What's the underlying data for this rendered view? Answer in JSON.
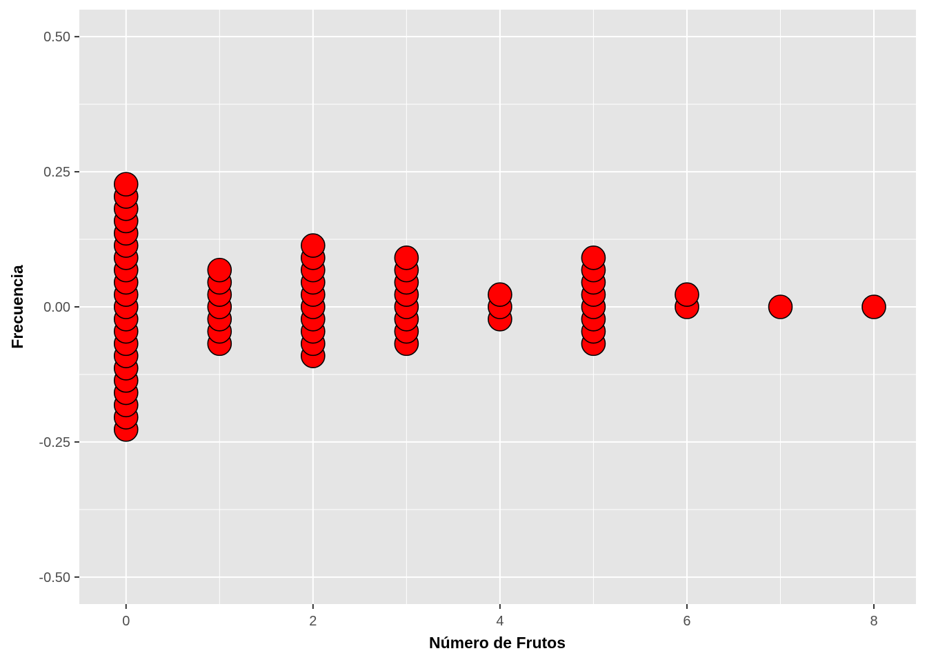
{
  "chart_data": {
    "type": "dotplot",
    "title": "",
    "xlabel": "Número de Frutos",
    "ylabel": "Frecuencia",
    "xlim": [
      -0.5,
      8.45
    ],
    "ylim": [
      -0.55,
      0.55
    ],
    "x_ticks": [
      0,
      2,
      4,
      6,
      8
    ],
    "x_tick_labels": [
      "0",
      "2",
      "4",
      "6",
      "8"
    ],
    "y_ticks": [
      -0.5,
      -0.25,
      0,
      0.25,
      0.5
    ],
    "y_tick_labels": [
      "-0.50",
      "-0.25",
      "0.00",
      "0.25",
      "0.50"
    ],
    "grid": true,
    "legend": "none",
    "colors": {
      "panel": "#e5e5e5",
      "grid": "#ffffff",
      "dot_fill": "#ff0000",
      "dot_stroke": "#000000"
    },
    "dot_spacing": 0.0227,
    "counts": [
      {
        "x": 0,
        "count": 21
      },
      {
        "x": 1,
        "count": 7
      },
      {
        "x": 2,
        "count": 10
      },
      {
        "x": 3,
        "count": 8
      },
      {
        "x": 4,
        "count": 3
      },
      {
        "x": 5,
        "count": 8
      },
      {
        "x": 6,
        "count": 2
      },
      {
        "x": 7,
        "count": 1
      },
      {
        "x": 8,
        "count": 1
      }
    ]
  }
}
